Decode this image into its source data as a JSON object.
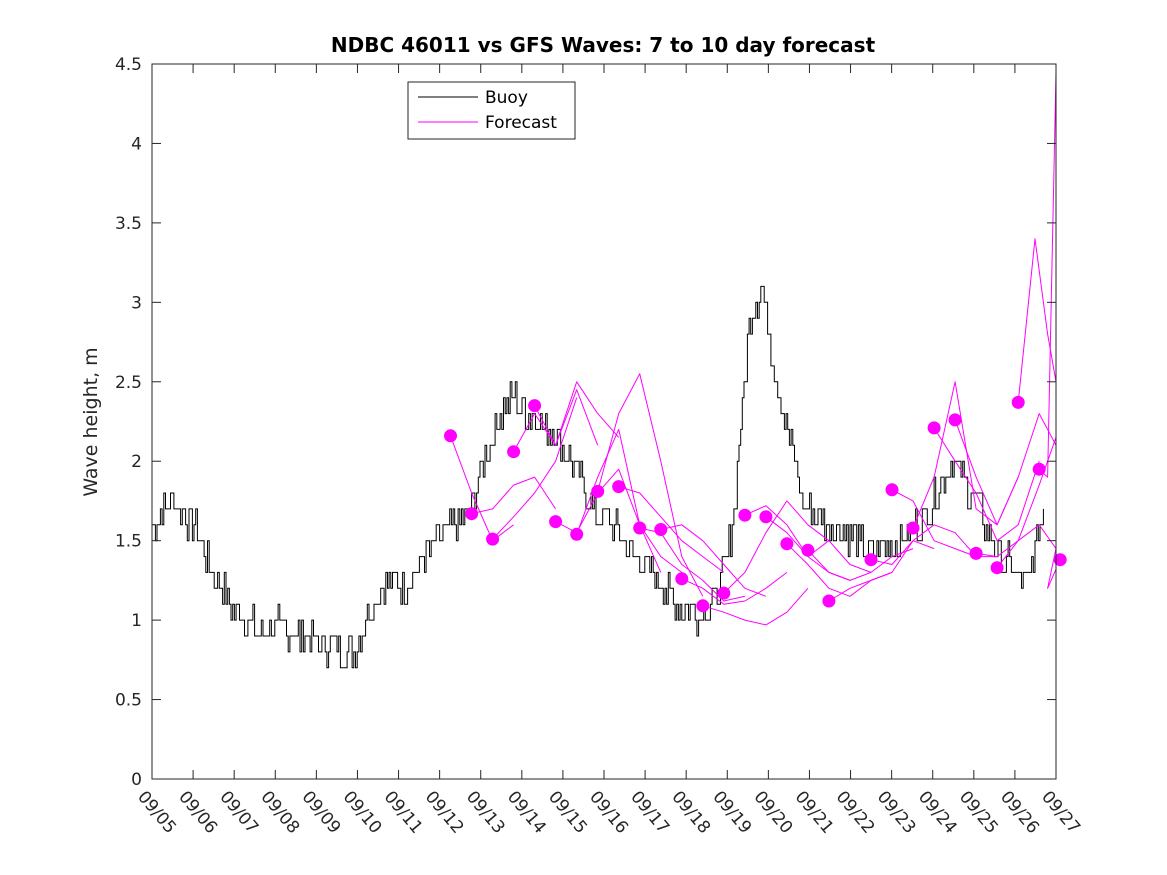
{
  "chart_data": {
    "type": "line",
    "title": "NDBC 46011 vs GFS Waves: 7 to 10 day forecast",
    "xlabel": "",
    "ylabel": "Wave height, m",
    "x_unit": "days since 09/05",
    "xlim": [
      0,
      21.5
    ],
    "ylim": [
      0,
      4.5
    ],
    "grid": false,
    "legend_position": "top-left",
    "yticks": [
      0,
      0.5,
      1,
      1.5,
      2,
      2.5,
      3,
      3.5,
      4,
      4.5
    ],
    "ytick_labels": [
      "0",
      "0.5",
      "1",
      "1.5",
      "2",
      "2.5",
      "3",
      "3.5",
      "4",
      "4.5"
    ],
    "xticks": [
      0,
      1,
      2,
      3,
      4,
      5,
      6,
      7,
      8,
      9,
      10,
      11,
      12,
      13,
      14,
      15,
      16,
      17,
      18,
      19,
      20,
      21,
      22
    ],
    "xtick_labels": [
      "09/05",
      "09/06",
      "09/07",
      "09/08",
      "09/09",
      "09/10",
      "09/11",
      "09/12",
      "09/13",
      "09/14",
      "09/15",
      "09/16",
      "09/17",
      "09/18",
      "09/19",
      "09/20",
      "09/21",
      "09/22",
      "09/23",
      "09/24",
      "09/25",
      "09/26",
      "09/27"
    ],
    "colors": {
      "buoy": "#000000",
      "forecast": "#ff00ff",
      "axes": "#262626"
    },
    "legend": [
      {
        "label": "Buoy",
        "color": "#000000"
      },
      {
        "label": "Forecast",
        "color": "#ff00ff"
      }
    ],
    "buoy_series": {
      "name": "Buoy",
      "x": [
        0,
        0.5,
        1,
        1.5,
        2,
        2.5,
        3,
        3.5,
        4,
        4.5,
        4.8,
        5,
        5.5,
        6,
        6.5,
        7,
        7.5,
        8,
        8.3,
        8.6,
        9,
        9.5,
        10,
        10.5,
        11,
        11.5,
        12,
        12.5,
        13,
        13.3,
        13.6,
        13.8,
        14,
        14.2,
        14.5,
        14.8,
        15,
        15.2,
        15.5,
        16,
        16.5,
        17,
        17.5,
        18,
        18.5,
        19,
        19.5,
        20,
        20.2,
        20.5,
        20.8,
        21,
        21.2
      ],
      "y": [
        1.6,
        1.75,
        1.6,
        1.25,
        1.05,
        0.95,
        0.95,
        0.9,
        0.85,
        0.8,
        0.8,
        0.95,
        1.25,
        1.2,
        1.4,
        1.55,
        1.65,
        2.1,
        2.3,
        2.4,
        2.3,
        2.2,
        2.0,
        1.7,
        1.6,
        1.4,
        1.25,
        1.1,
        1.05,
        1.1,
        1.3,
        1.6,
        2.2,
        2.9,
        3.1,
        2.6,
        2.3,
        2.1,
        1.7,
        1.6,
        1.55,
        1.45,
        1.45,
        1.55,
        1.7,
        2.0,
        1.8,
        1.5,
        1.4,
        1.3,
        1.2,
        1.45,
        1.7
      ]
    },
    "forecast_series": [
      {
        "name": "Forecast",
        "x": [
          7.1,
          7.6,
          8.1,
          8.6
        ],
        "y": [
          2.16,
          1.8,
          1.5,
          1.6
        ]
      },
      {
        "name": "Forecast",
        "x": [
          7.6,
          8.1,
          8.6,
          9.1,
          9.6
        ],
        "y": [
          1.67,
          1.7,
          1.85,
          1.9,
          1.7
        ]
      },
      {
        "name": "Forecast",
        "x": [
          8.1,
          8.6,
          9.1,
          9.6,
          10.1
        ],
        "y": [
          1.51,
          1.65,
          1.8,
          2.0,
          2.4
        ]
      },
      {
        "name": "Forecast",
        "x": [
          8.6,
          9.1,
          9.6,
          10.1,
          10.6
        ],
        "y": [
          2.06,
          2.3,
          2.1,
          2.45,
          2.1
        ]
      },
      {
        "name": "Forecast",
        "x": [
          9.1,
          9.6,
          10.1,
          10.6,
          11.1
        ],
        "y": [
          2.35,
          2.1,
          2.5,
          2.3,
          2.15
        ]
      },
      {
        "name": "Forecast",
        "x": [
          9.6,
          10.1,
          10.6,
          11.1,
          11.6,
          12.1
        ],
        "y": [
          1.62,
          1.55,
          1.8,
          1.95,
          1.6,
          1.3
        ]
      },
      {
        "name": "Forecast",
        "x": [
          10.1,
          10.6,
          11.1,
          11.6,
          12.1,
          12.6
        ],
        "y": [
          1.54,
          1.9,
          2.2,
          1.6,
          1.4,
          1.3
        ]
      },
      {
        "name": "Forecast",
        "x": [
          10.6,
          11.1,
          11.6,
          12.1,
          12.6,
          13.1
        ],
        "y": [
          1.81,
          2.3,
          2.55,
          2.0,
          1.4,
          1.15
        ]
      },
      {
        "name": "Forecast",
        "x": [
          11.1,
          11.6,
          12.1,
          12.6,
          13.1,
          13.6
        ],
        "y": [
          1.84,
          1.8,
          1.65,
          1.5,
          1.4,
          1.3
        ]
      },
      {
        "name": "Forecast",
        "x": [
          11.6,
          12.1,
          12.6,
          13.1,
          13.6,
          14.1
        ],
        "y": [
          1.58,
          1.55,
          1.35,
          1.25,
          1.12,
          1.15
        ]
      },
      {
        "name": "Forecast",
        "x": [
          12.1,
          12.6,
          13.1,
          13.6,
          14.1,
          14.6
        ],
        "y": [
          1.57,
          1.6,
          1.5,
          1.35,
          1.2,
          1.15
        ]
      },
      {
        "name": "Forecast",
        "x": [
          12.6,
          13.1,
          13.6,
          14.1,
          14.6,
          15.1
        ],
        "y": [
          1.26,
          1.2,
          1.1,
          1.12,
          1.2,
          1.3
        ]
      },
      {
        "name": "Forecast",
        "x": [
          13.1,
          13.6,
          14.1,
          14.6,
          15.1,
          15.6
        ],
        "y": [
          1.09,
          1.05,
          1.0,
          0.97,
          1.05,
          1.2
        ]
      },
      {
        "name": "Forecast",
        "x": [
          13.6,
          14.1,
          14.6,
          15.1,
          15.6,
          16.1
        ],
        "y": [
          1.17,
          1.3,
          1.55,
          1.75,
          1.6,
          1.5
        ]
      },
      {
        "name": "Forecast",
        "x": [
          14.1,
          14.6,
          15.1,
          15.6,
          16.1,
          16.6
        ],
        "y": [
          1.66,
          1.72,
          1.6,
          1.4,
          1.3,
          1.25
        ]
      },
      {
        "name": "Forecast",
        "x": [
          14.6,
          15.1,
          15.6,
          16.1,
          16.6,
          17.1
        ],
        "y": [
          1.65,
          1.55,
          1.4,
          1.5,
          1.35,
          1.3
        ]
      },
      {
        "name": "Forecast",
        "x": [
          15.1,
          15.6,
          16.1,
          16.6,
          17.1,
          17.6
        ],
        "y": [
          1.48,
          1.35,
          1.2,
          1.15,
          1.25,
          1.3
        ]
      },
      {
        "name": "Forecast",
        "x": [
          15.6,
          16.1,
          16.6,
          17.1,
          17.6,
          18.1
        ],
        "y": [
          1.44,
          1.3,
          1.25,
          1.3,
          1.4,
          1.45
        ]
      },
      {
        "name": "Forecast",
        "x": [
          16.1,
          16.6,
          17.1,
          17.6,
          18.1,
          18.6
        ],
        "y": [
          1.12,
          1.2,
          1.25,
          1.3,
          1.5,
          1.45
        ]
      },
      {
        "name": "Forecast",
        "x": [
          17.1,
          17.6,
          18.1,
          18.6,
          19.1,
          19.6
        ],
        "y": [
          1.38,
          1.35,
          1.5,
          1.6,
          1.55,
          1.4
        ]
      },
      {
        "name": "Forecast",
        "x": [
          17.6,
          18.1,
          18.6,
          19.1,
          19.6,
          20.1
        ],
        "y": [
          1.82,
          1.75,
          1.5,
          1.45,
          1.4,
          1.4
        ]
      },
      {
        "name": "Forecast",
        "x": [
          18.1,
          18.6,
          19.1,
          19.6,
          20.1,
          20.6
        ],
        "y": [
          1.58,
          1.9,
          2.5,
          1.7,
          1.6,
          1.9
        ]
      },
      {
        "name": "Forecast",
        "x": [
          18.6,
          19.1,
          19.6,
          20.1,
          20.6,
          21.1
        ],
        "y": [
          2.21,
          2.0,
          1.8,
          1.5,
          1.6,
          2.0
        ]
      },
      {
        "name": "Forecast",
        "x": [
          19.1,
          19.6,
          20.1,
          20.6,
          21.1,
          21.5
        ],
        "y": [
          2.26,
          1.9,
          1.6,
          1.9,
          2.3,
          2.1
        ]
      },
      {
        "name": "Forecast",
        "x": [
          19.6,
          20.1,
          20.6,
          21.1,
          21.5
        ],
        "y": [
          1.42,
          1.4,
          1.5,
          1.85,
          2.15
        ]
      },
      {
        "name": "Forecast",
        "x": [
          20.1,
          20.6,
          21.1,
          21.5
        ],
        "y": [
          1.33,
          1.5,
          1.6,
          1.45
        ]
      },
      {
        "name": "Forecast",
        "x": [
          20.6,
          21.0,
          21.3,
          21.5
        ],
        "y": [
          2.37,
          3.4,
          2.8,
          2.5
        ]
      },
      {
        "name": "Forecast",
        "x": [
          21.1,
          21.3,
          21.5
        ],
        "y": [
          1.95,
          1.9,
          4.45
        ]
      },
      {
        "name": "Forecast",
        "x": [
          21.6,
          21.3,
          21.5
        ],
        "y": [
          1.38,
          1.2,
          1.45
        ]
      }
    ],
    "forecast_markers": {
      "name": "Forecast start",
      "x": [
        7.1,
        7.6,
        8.1,
        8.6,
        9.1,
        9.6,
        10.1,
        10.6,
        11.1,
        11.6,
        12.1,
        12.6,
        13.1,
        13.6,
        14.1,
        14.6,
        15.1,
        15.6,
        16.1,
        17.1,
        17.6,
        18.1,
        18.6,
        19.1,
        19.6,
        20.1,
        20.6,
        21.1,
        21.6
      ],
      "y": [
        2.16,
        1.67,
        1.51,
        2.06,
        2.35,
        1.62,
        1.54,
        1.81,
        1.84,
        1.58,
        1.57,
        1.26,
        1.09,
        1.17,
        1.66,
        1.65,
        1.48,
        1.44,
        1.12,
        1.38,
        1.82,
        1.58,
        2.21,
        2.26,
        1.42,
        1.33,
        2.37,
        1.95,
        1.38
      ]
    }
  }
}
